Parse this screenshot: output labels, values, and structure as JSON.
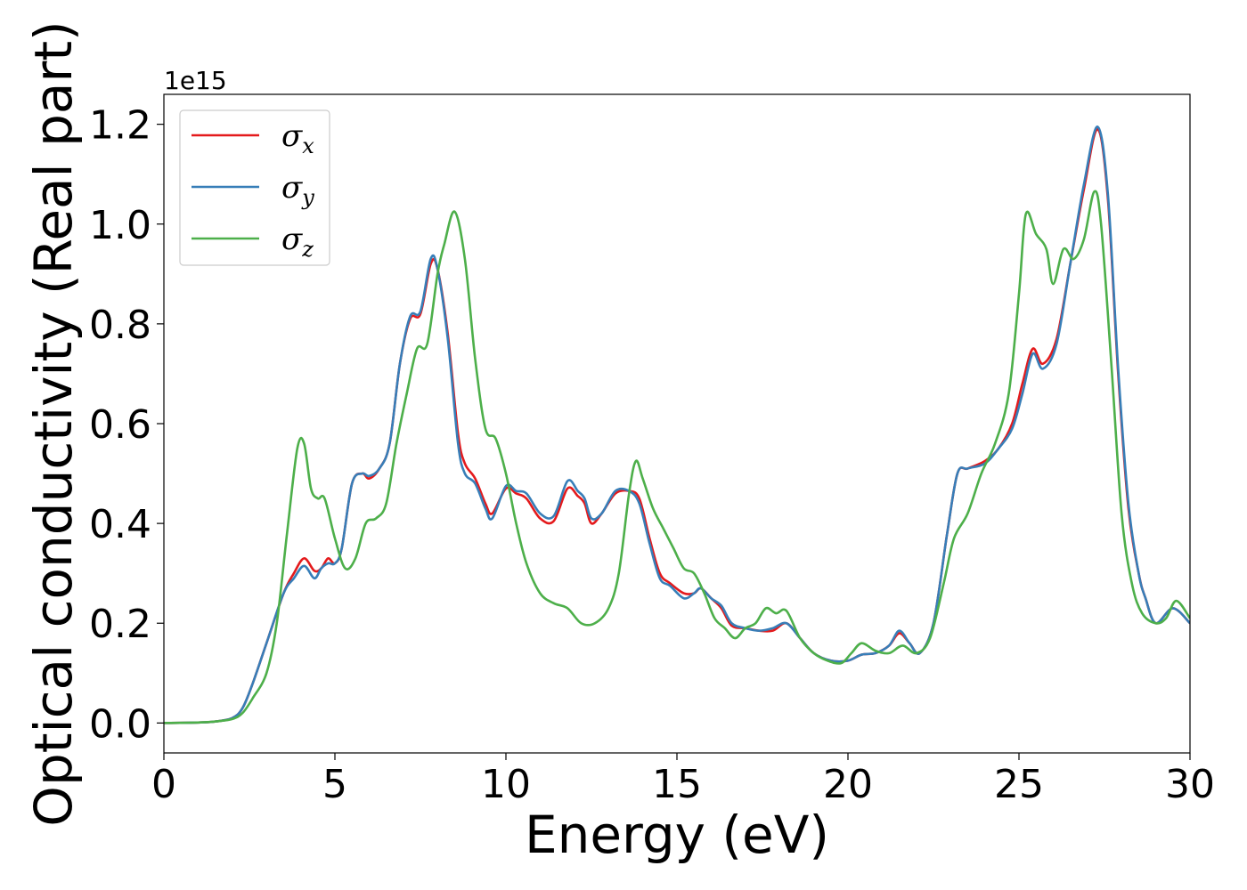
{
  "chart_data": {
    "type": "line",
    "xlabel": "Energy (eV)",
    "ylabel": "Optical conductivity (Real part)",
    "y_offset_label": "1e15",
    "xlim": [
      0,
      30
    ],
    "ylim": [
      -0.06,
      1.26
    ],
    "xticks": [
      0,
      5,
      10,
      15,
      20,
      25,
      30
    ],
    "yticks": [
      0.0,
      0.2,
      0.4,
      0.6,
      0.8,
      1.0,
      1.2
    ],
    "xtick_labels": [
      "0",
      "5",
      "10",
      "15",
      "20",
      "25",
      "30"
    ],
    "ytick_labels": [
      "0.0",
      "0.2",
      "0.4",
      "0.6",
      "0.8",
      "1.0",
      "1.2"
    ],
    "grid": false,
    "legend_position": "top-left",
    "series": [
      {
        "name": "σ",
        "subscript": "x",
        "color": "#e41a1c",
        "points": [
          [
            0,
            0
          ],
          [
            1,
            0.001
          ],
          [
            1.5,
            0.003
          ],
          [
            2,
            0.01
          ],
          [
            2.3,
            0.03
          ],
          [
            2.6,
            0.08
          ],
          [
            3,
            0.16
          ],
          [
            3.5,
            0.26
          ],
          [
            3.8,
            0.3
          ],
          [
            4.1,
            0.33
          ],
          [
            4.4,
            0.305
          ],
          [
            4.6,
            0.31
          ],
          [
            4.8,
            0.33
          ],
          [
            5,
            0.32
          ],
          [
            5.2,
            0.35
          ],
          [
            5.5,
            0.48
          ],
          [
            5.8,
            0.5
          ],
          [
            6,
            0.49
          ],
          [
            6.3,
            0.51
          ],
          [
            6.6,
            0.56
          ],
          [
            6.9,
            0.72
          ],
          [
            7.2,
            0.81
          ],
          [
            7.5,
            0.82
          ],
          [
            7.8,
            0.92
          ],
          [
            8.0,
            0.91
          ],
          [
            8.3,
            0.78
          ],
          [
            8.6,
            0.58
          ],
          [
            8.8,
            0.52
          ],
          [
            9.1,
            0.49
          ],
          [
            9.4,
            0.44
          ],
          [
            9.6,
            0.42
          ],
          [
            10.0,
            0.47
          ],
          [
            10.3,
            0.46
          ],
          [
            10.6,
            0.45
          ],
          [
            11.0,
            0.41
          ],
          [
            11.4,
            0.405
          ],
          [
            11.8,
            0.47
          ],
          [
            12.1,
            0.455
          ],
          [
            12.3,
            0.44
          ],
          [
            12.5,
            0.4
          ],
          [
            12.8,
            0.42
          ],
          [
            13.2,
            0.46
          ],
          [
            13.6,
            0.465
          ],
          [
            13.9,
            0.45
          ],
          [
            14.2,
            0.37
          ],
          [
            14.5,
            0.3
          ],
          [
            14.8,
            0.28
          ],
          [
            15.2,
            0.26
          ],
          [
            15.5,
            0.26
          ],
          [
            15.7,
            0.27
          ],
          [
            16.0,
            0.25
          ],
          [
            16.3,
            0.23
          ],
          [
            16.6,
            0.195
          ],
          [
            17,
            0.19
          ],
          [
            17.4,
            0.185
          ],
          [
            17.8,
            0.185
          ],
          [
            18.2,
            0.2
          ],
          [
            18.6,
            0.17
          ],
          [
            19.0,
            0.14
          ],
          [
            19.5,
            0.125
          ],
          [
            20,
            0.125
          ],
          [
            20.4,
            0.137
          ],
          [
            20.8,
            0.14
          ],
          [
            21.2,
            0.155
          ],
          [
            21.5,
            0.18
          ],
          [
            21.8,
            0.16
          ],
          [
            22.1,
            0.14
          ],
          [
            22.5,
            0.2
          ],
          [
            22.9,
            0.38
          ],
          [
            23.2,
            0.5
          ],
          [
            23.5,
            0.51
          ],
          [
            24.0,
            0.525
          ],
          [
            24.4,
            0.55
          ],
          [
            24.8,
            0.6
          ],
          [
            25.1,
            0.68
          ],
          [
            25.4,
            0.75
          ],
          [
            25.7,
            0.72
          ],
          [
            26.1,
            0.77
          ],
          [
            26.5,
            0.92
          ],
          [
            26.9,
            1.07
          ],
          [
            27.3,
            1.19
          ],
          [
            27.6,
            1.05
          ],
          [
            27.9,
            0.7
          ],
          [
            28.2,
            0.43
          ],
          [
            28.5,
            0.3
          ],
          [
            28.7,
            0.25
          ],
          [
            29.0,
            0.2
          ],
          [
            29.5,
            0.23
          ],
          [
            30,
            0.2
          ]
        ]
      },
      {
        "name": "σ",
        "subscript": "y",
        "color": "#377eb8",
        "points": [
          [
            0,
            0
          ],
          [
            1,
            0.001
          ],
          [
            1.5,
            0.003
          ],
          [
            2,
            0.01
          ],
          [
            2.3,
            0.03
          ],
          [
            2.6,
            0.08
          ],
          [
            3,
            0.16
          ],
          [
            3.5,
            0.26
          ],
          [
            3.8,
            0.29
          ],
          [
            4.1,
            0.315
          ],
          [
            4.4,
            0.29
          ],
          [
            4.6,
            0.31
          ],
          [
            4.8,
            0.32
          ],
          [
            5,
            0.32
          ],
          [
            5.2,
            0.35
          ],
          [
            5.5,
            0.48
          ],
          [
            5.8,
            0.5
          ],
          [
            6,
            0.495
          ],
          [
            6.3,
            0.51
          ],
          [
            6.6,
            0.56
          ],
          [
            6.9,
            0.72
          ],
          [
            7.2,
            0.815
          ],
          [
            7.5,
            0.825
          ],
          [
            7.8,
            0.93
          ],
          [
            8.0,
            0.91
          ],
          [
            8.3,
            0.77
          ],
          [
            8.6,
            0.56
          ],
          [
            8.8,
            0.5
          ],
          [
            9.1,
            0.48
          ],
          [
            9.4,
            0.43
          ],
          [
            9.6,
            0.41
          ],
          [
            10.0,
            0.475
          ],
          [
            10.3,
            0.465
          ],
          [
            10.6,
            0.46
          ],
          [
            11.0,
            0.42
          ],
          [
            11.4,
            0.415
          ],
          [
            11.8,
            0.485
          ],
          [
            12.1,
            0.465
          ],
          [
            12.3,
            0.45
          ],
          [
            12.5,
            0.41
          ],
          [
            12.8,
            0.42
          ],
          [
            13.2,
            0.465
          ],
          [
            13.6,
            0.465
          ],
          [
            13.9,
            0.44
          ],
          [
            14.2,
            0.36
          ],
          [
            14.5,
            0.29
          ],
          [
            14.8,
            0.275
          ],
          [
            15.2,
            0.25
          ],
          [
            15.5,
            0.26
          ],
          [
            15.7,
            0.27
          ],
          [
            16.0,
            0.25
          ],
          [
            16.3,
            0.235
          ],
          [
            16.6,
            0.2
          ],
          [
            17,
            0.19
          ],
          [
            17.4,
            0.185
          ],
          [
            17.8,
            0.19
          ],
          [
            18.2,
            0.2
          ],
          [
            18.6,
            0.17
          ],
          [
            19.0,
            0.14
          ],
          [
            19.5,
            0.125
          ],
          [
            20,
            0.125
          ],
          [
            20.4,
            0.137
          ],
          [
            20.8,
            0.14
          ],
          [
            21.2,
            0.155
          ],
          [
            21.5,
            0.185
          ],
          [
            21.8,
            0.16
          ],
          [
            22.1,
            0.14
          ],
          [
            22.5,
            0.2
          ],
          [
            22.9,
            0.38
          ],
          [
            23.2,
            0.5
          ],
          [
            23.5,
            0.51
          ],
          [
            24.0,
            0.52
          ],
          [
            24.4,
            0.55
          ],
          [
            24.8,
            0.59
          ],
          [
            25.1,
            0.66
          ],
          [
            25.4,
            0.74
          ],
          [
            25.7,
            0.71
          ],
          [
            26.1,
            0.76
          ],
          [
            26.5,
            0.92
          ],
          [
            26.9,
            1.08
          ],
          [
            27.3,
            1.195
          ],
          [
            27.6,
            1.06
          ],
          [
            27.9,
            0.71
          ],
          [
            28.2,
            0.44
          ],
          [
            28.5,
            0.3
          ],
          [
            28.7,
            0.25
          ],
          [
            29.0,
            0.2
          ],
          [
            29.5,
            0.23
          ],
          [
            30,
            0.2
          ]
        ]
      },
      {
        "name": "σ",
        "subscript": "z",
        "color": "#4daf4a",
        "points": [
          [
            0,
            0
          ],
          [
            1,
            0.001
          ],
          [
            1.5,
            0.003
          ],
          [
            2,
            0.008
          ],
          [
            2.3,
            0.02
          ],
          [
            2.6,
            0.05
          ],
          [
            3,
            0.1
          ],
          [
            3.3,
            0.2
          ],
          [
            3.6,
            0.38
          ],
          [
            3.9,
            0.55
          ],
          [
            4.1,
            0.56
          ],
          [
            4.3,
            0.47
          ],
          [
            4.5,
            0.45
          ],
          [
            4.7,
            0.45
          ],
          [
            5,
            0.37
          ],
          [
            5.3,
            0.31
          ],
          [
            5.6,
            0.33
          ],
          [
            5.9,
            0.4
          ],
          [
            6.2,
            0.41
          ],
          [
            6.5,
            0.44
          ],
          [
            6.8,
            0.56
          ],
          [
            7.1,
            0.66
          ],
          [
            7.4,
            0.75
          ],
          [
            7.7,
            0.76
          ],
          [
            8.0,
            0.9
          ],
          [
            8.2,
            0.96
          ],
          [
            8.5,
            1.025
          ],
          [
            8.8,
            0.93
          ],
          [
            9.1,
            0.73
          ],
          [
            9.4,
            0.59
          ],
          [
            9.7,
            0.57
          ],
          [
            10.0,
            0.5
          ],
          [
            10.3,
            0.4
          ],
          [
            10.6,
            0.32
          ],
          [
            11.0,
            0.26
          ],
          [
            11.4,
            0.24
          ],
          [
            11.8,
            0.23
          ],
          [
            12.2,
            0.2
          ],
          [
            12.6,
            0.2
          ],
          [
            13.0,
            0.23
          ],
          [
            13.3,
            0.3
          ],
          [
            13.6,
            0.46
          ],
          [
            13.8,
            0.525
          ],
          [
            14.0,
            0.49
          ],
          [
            14.3,
            0.43
          ],
          [
            14.6,
            0.39
          ],
          [
            14.9,
            0.35
          ],
          [
            15.2,
            0.31
          ],
          [
            15.5,
            0.3
          ],
          [
            15.8,
            0.26
          ],
          [
            16.1,
            0.21
          ],
          [
            16.4,
            0.19
          ],
          [
            16.7,
            0.17
          ],
          [
            17,
            0.19
          ],
          [
            17.3,
            0.2
          ],
          [
            17.6,
            0.23
          ],
          [
            17.9,
            0.22
          ],
          [
            18.2,
            0.225
          ],
          [
            18.6,
            0.17
          ],
          [
            19.0,
            0.14
          ],
          [
            19.4,
            0.125
          ],
          [
            19.8,
            0.12
          ],
          [
            20.1,
            0.14
          ],
          [
            20.4,
            0.16
          ],
          [
            20.8,
            0.145
          ],
          [
            21.2,
            0.14
          ],
          [
            21.6,
            0.155
          ],
          [
            22.0,
            0.14
          ],
          [
            22.4,
            0.17
          ],
          [
            22.8,
            0.28
          ],
          [
            23.1,
            0.37
          ],
          [
            23.5,
            0.42
          ],
          [
            23.9,
            0.5
          ],
          [
            24.3,
            0.56
          ],
          [
            24.7,
            0.66
          ],
          [
            25.0,
            0.86
          ],
          [
            25.2,
            1.02
          ],
          [
            25.5,
            0.98
          ],
          [
            25.8,
            0.95
          ],
          [
            26.0,
            0.88
          ],
          [
            26.3,
            0.95
          ],
          [
            26.6,
            0.93
          ],
          [
            26.9,
            0.97
          ],
          [
            27.2,
            1.065
          ],
          [
            27.4,
            1.0
          ],
          [
            27.7,
            0.72
          ],
          [
            28.0,
            0.42
          ],
          [
            28.3,
            0.28
          ],
          [
            28.6,
            0.22
          ],
          [
            29.0,
            0.2
          ],
          [
            29.3,
            0.21
          ],
          [
            29.6,
            0.245
          ],
          [
            30,
            0.21
          ]
        ]
      }
    ]
  }
}
